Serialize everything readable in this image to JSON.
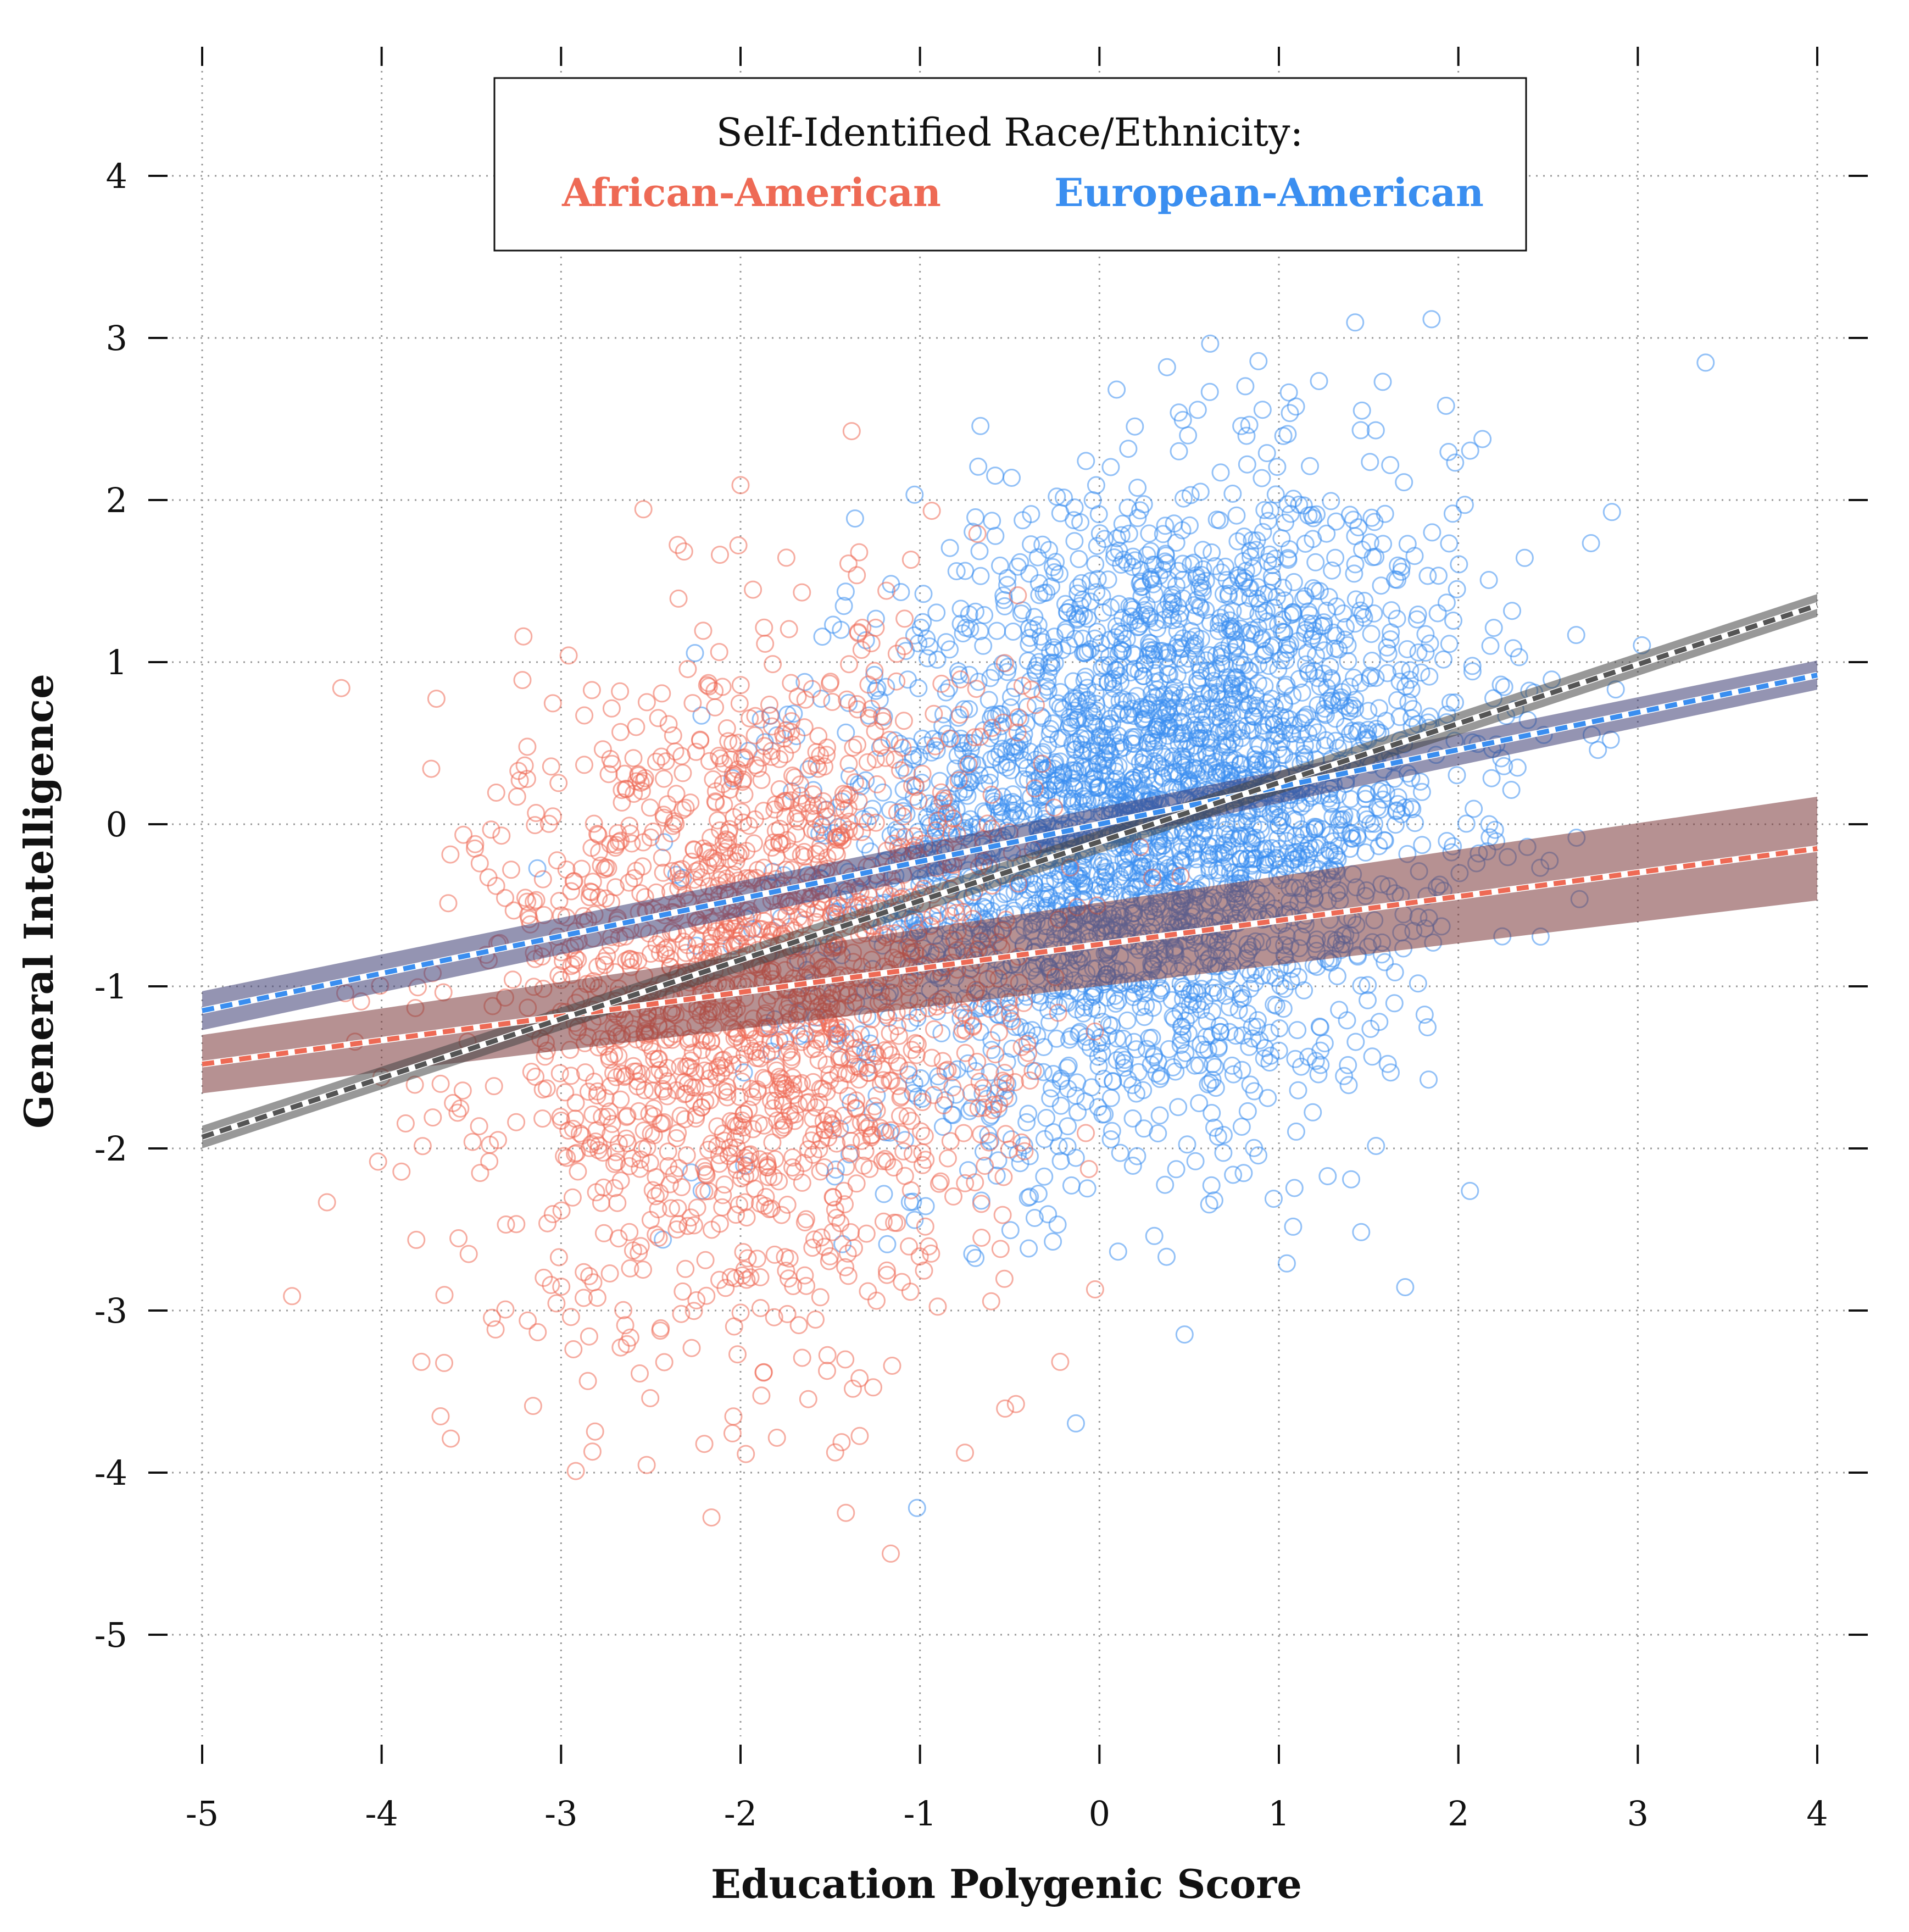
{
  "chart_data": {
    "type": "scatter",
    "xlabel": "Education Polygenic Score",
    "ylabel": "General Intelligence",
    "xlim": [
      -5,
      4
    ],
    "ylim": [
      -5.6,
      4.6
    ],
    "x_ticks": [
      "-5",
      "-4",
      "-3",
      "-2",
      "-1",
      "0",
      "1",
      "2",
      "3",
      "4"
    ],
    "y_ticks": [
      "4",
      "3",
      "2",
      "1",
      "0",
      "-1",
      "-2",
      "-3",
      "-4",
      "-5"
    ],
    "grid": true,
    "grid_style": "dotted",
    "legend": {
      "title": "Self-Identified Race/Ethnicity:",
      "placement": "top-center",
      "entries": [
        {
          "label": "African-American",
          "color": "#ee6a55"
        },
        {
          "label": "European-American",
          "color": "#3a8ef0"
        }
      ]
    },
    "series": [
      {
        "name": "African-American",
        "color": "#ee6a55",
        "marker": "open-circle",
        "n_points": 1800,
        "x_mean": -1.9,
        "x_sd": 0.72,
        "y_mean": -1.05,
        "y_sd": 1.02,
        "fit": {
          "x": [
            -5,
            4
          ],
          "y": [
            -1.48,
            -0.15
          ],
          "band_color": "#7a3638",
          "band_lower": [
            -1.66,
            -0.47
          ],
          "band_upper": [
            -1.3,
            0.17
          ]
        }
      },
      {
        "name": "European-American",
        "color": "#3a8ef0",
        "marker": "open-circle",
        "n_points": 3200,
        "x_mean": 0.3,
        "x_sd": 0.85,
        "y_mean": 0.15,
        "y_sd": 0.95,
        "fit": {
          "x": [
            -5,
            4
          ],
          "y": [
            -1.15,
            0.92
          ],
          "band_color": "#3c3c72",
          "band_lower": [
            -1.27,
            0.83
          ],
          "band_upper": [
            -1.03,
            1.01
          ]
        }
      },
      {
        "color": "#555555",
        "marker": "none",
        "fit": {
          "x": [
            -5,
            4
          ],
          "y": [
            -1.93,
            1.35
          ],
          "band_color": "#444444",
          "band_lower": [
            -2.0,
            1.28
          ],
          "band_upper": [
            -1.86,
            1.42
          ]
        }
      }
    ]
  }
}
